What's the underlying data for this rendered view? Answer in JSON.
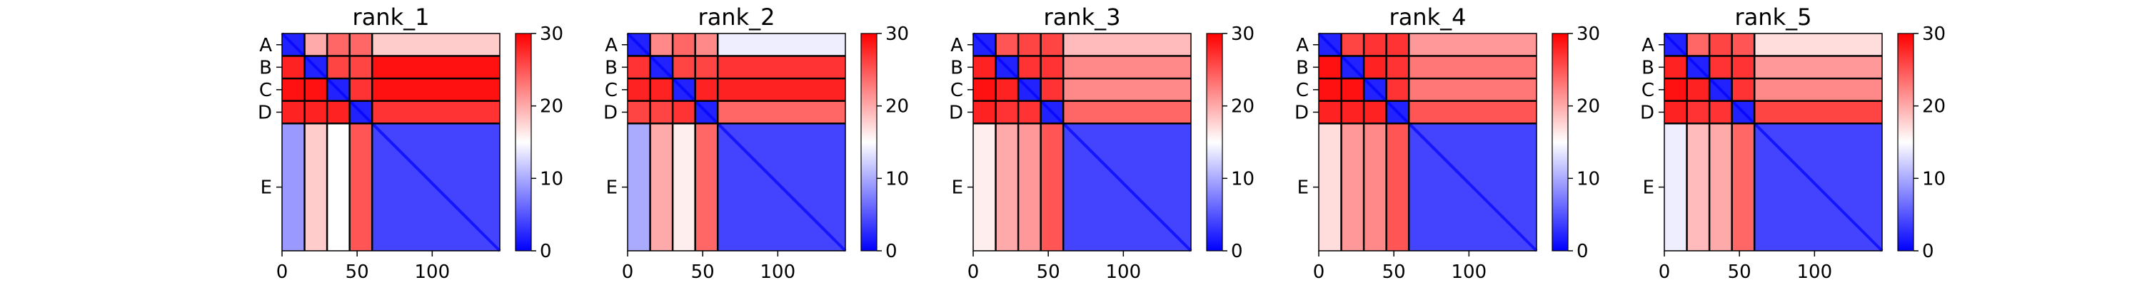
{
  "chart_data": [
    {
      "type": "heatmap",
      "title": "rank_1",
      "x_ticks": [
        0,
        50,
        100
      ],
      "xlim": [
        0,
        145
      ],
      "chains": [
        {
          "label": "A",
          "start": 0,
          "end": 15
        },
        {
          "label": "B",
          "start": 15,
          "end": 30
        },
        {
          "label": "C",
          "start": 30,
          "end": 45
        },
        {
          "label": "D",
          "start": 45,
          "end": 60
        },
        {
          "label": "E",
          "start": 60,
          "end": 145
        }
      ],
      "block_levels": [
        [
          2,
          20,
          24,
          24,
          18
        ],
        [
          28,
          2,
          26,
          26,
          29
        ],
        [
          29,
          29,
          2,
          27,
          29
        ],
        [
          28,
          28,
          28,
          2,
          27
        ],
        [
          9,
          18,
          15,
          25,
          4
        ]
      ],
      "colorbar": {
        "min": 0,
        "max": 30,
        "ticks": [
          0,
          10,
          20,
          30
        ]
      }
    },
    {
      "type": "heatmap",
      "title": "rank_2",
      "x_ticks": [
        0,
        50,
        100
      ],
      "xlim": [
        0,
        145
      ],
      "chains": [
        {
          "label": "A",
          "start": 0,
          "end": 15
        },
        {
          "label": "B",
          "start": 15,
          "end": 30
        },
        {
          "label": "C",
          "start": 30,
          "end": 45
        },
        {
          "label": "D",
          "start": 45,
          "end": 60
        },
        {
          "label": "E",
          "start": 60,
          "end": 145
        }
      ],
      "block_levels": [
        [
          2,
          22,
          24,
          22,
          14
        ],
        [
          27,
          2,
          26,
          26,
          27
        ],
        [
          28,
          28,
          2,
          28,
          28
        ],
        [
          26,
          26,
          27,
          2,
          24
        ],
        [
          10,
          20,
          16,
          24,
          4
        ]
      ],
      "colorbar": {
        "min": 0,
        "max": 30,
        "ticks": [
          0,
          10,
          20,
          30
        ]
      }
    },
    {
      "type": "heatmap",
      "title": "rank_3",
      "x_ticks": [
        0,
        50,
        100
      ],
      "xlim": [
        0,
        145
      ],
      "chains": [
        {
          "label": "A",
          "start": 0,
          "end": 15
        },
        {
          "label": "B",
          "start": 15,
          "end": 30
        },
        {
          "label": "C",
          "start": 30,
          "end": 45
        },
        {
          "label": "D",
          "start": 45,
          "end": 60
        },
        {
          "label": "E",
          "start": 60,
          "end": 145
        }
      ],
      "block_levels": [
        [
          2,
          25,
          26,
          26,
          19
        ],
        [
          28,
          2,
          27,
          27,
          22
        ],
        [
          29,
          28,
          2,
          27,
          22
        ],
        [
          28,
          27,
          27,
          2,
          24
        ],
        [
          16,
          20,
          21,
          25,
          4
        ]
      ],
      "colorbar": {
        "min": 0,
        "max": 30,
        "ticks": [
          0,
          10,
          20,
          30
        ]
      }
    },
    {
      "type": "heatmap",
      "title": "rank_4",
      "x_ticks": [
        0,
        50,
        100
      ],
      "xlim": [
        0,
        145
      ],
      "chains": [
        {
          "label": "A",
          "start": 0,
          "end": 15
        },
        {
          "label": "B",
          "start": 15,
          "end": 30
        },
        {
          "label": "C",
          "start": 30,
          "end": 45
        },
        {
          "label": "D",
          "start": 45,
          "end": 60
        },
        {
          "label": "E",
          "start": 60,
          "end": 145
        }
      ],
      "block_levels": [
        [
          2,
          26,
          27,
          27,
          21
        ],
        [
          29,
          2,
          28,
          27,
          23
        ],
        [
          29,
          29,
          2,
          27,
          23
        ],
        [
          28,
          28,
          28,
          2,
          25
        ],
        [
          17,
          21,
          22,
          25,
          4
        ]
      ],
      "colorbar": {
        "min": 0,
        "max": 30,
        "ticks": [
          0,
          10,
          20,
          30
        ]
      }
    },
    {
      "type": "heatmap",
      "title": "rank_5",
      "x_ticks": [
        0,
        50,
        100
      ],
      "xlim": [
        0,
        145
      ],
      "chains": [
        {
          "label": "A",
          "start": 0,
          "end": 15
        },
        {
          "label": "B",
          "start": 15,
          "end": 30
        },
        {
          "label": "C",
          "start": 30,
          "end": 45
        },
        {
          "label": "D",
          "start": 45,
          "end": 60
        },
        {
          "label": "E",
          "start": 60,
          "end": 145
        }
      ],
      "block_levels": [
        [
          2,
          24,
          26,
          25,
          17
        ],
        [
          28,
          2,
          27,
          27,
          21
        ],
        [
          29,
          28,
          2,
          27,
          22
        ],
        [
          28,
          27,
          27,
          2,
          26
        ],
        [
          14,
          19,
          20,
          24,
          4
        ]
      ],
      "colorbar": {
        "min": 0,
        "max": 30,
        "ticks": [
          0,
          10,
          20,
          30
        ]
      }
    }
  ],
  "colors": {
    "low": "#0000ff",
    "mid": "#ffffff",
    "high": "#ff0000"
  }
}
